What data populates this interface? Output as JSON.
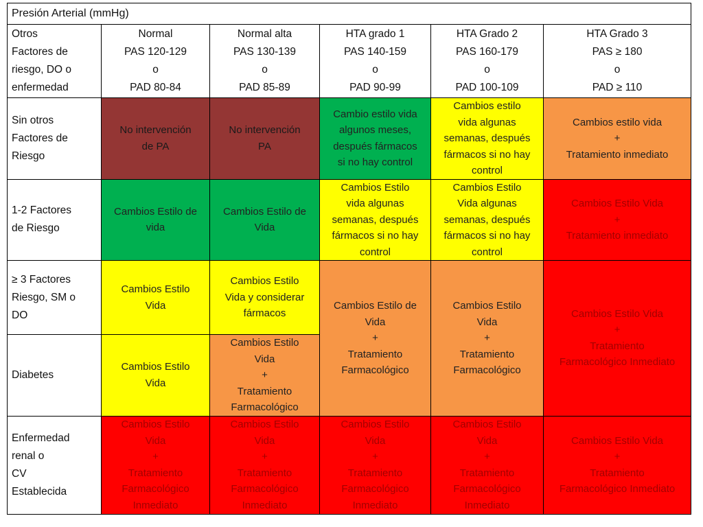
{
  "title": "Presión Arterial (mmHg)",
  "corner": [
    "Otros",
    "Factores de",
    "riesgo, DO o",
    "enfermedad"
  ],
  "columns": [
    [
      "Normal",
      "PAS 120-129",
      "o",
      "PAD 80-84"
    ],
    [
      "Normal alta",
      "PAS 130-139",
      "o",
      "PAD 85-89"
    ],
    [
      "HTA grado 1",
      "PAS 140-159",
      "o",
      "PAD 90-99"
    ],
    [
      "HTA Grado 2",
      "PAS 160-179",
      "o",
      "PAD 100-109"
    ],
    [
      "HTA Grado 3",
      "PAS ≥ 180",
      "o",
      "PAD ≥ 110"
    ]
  ],
  "rows": {
    "sin": {
      "label": [
        "Sin otros",
        "Factores de",
        "Riesgo"
      ],
      "c1": [
        "No intervención",
        "de PA"
      ],
      "c2": [
        "No intervención",
        "PA"
      ],
      "c3": [
        "Cambio estilo vida",
        "algunos meses,",
        "después fármacos",
        "si no hay control"
      ],
      "c4": [
        "Cambios estilo",
        "vida algunas",
        "semanas, después",
        "fármacos si no hay",
        "control"
      ],
      "c5": [
        "Cambios estilo vida",
        "+",
        "Tratamiento inmediato"
      ]
    },
    "f12": {
      "label": [
        "1-2 Factores",
        "de Riesgo"
      ],
      "c1": [
        "Cambios Estilo de",
        "vida"
      ],
      "c2": [
        "Cambios Estilo de",
        "Vida"
      ],
      "c3": [
        "Cambios Estilo",
        "vida algunas",
        "semanas, después",
        "fármacos si no hay",
        "control"
      ],
      "c4": [
        "Cambios Estilo",
        "Vida algunas",
        "semanas, después",
        "fármacos si no hay",
        "control"
      ],
      "c5": [
        "Cambios Estilo Vida",
        "+",
        "Tratamiento inmediato"
      ]
    },
    "f3": {
      "label": [
        "≥ 3 Factores",
        "Riesgo, SM o",
        "DO"
      ],
      "c1": [
        "Cambios Estilo",
        "Vida"
      ],
      "c2": [
        "Cambios Estilo",
        "Vida y considerar",
        "fármacos"
      ]
    },
    "diabetes": {
      "label": [
        "Diabetes"
      ],
      "c1": [
        "Cambios Estilo",
        "Vida"
      ],
      "c2": [
        "Cambios Estilo",
        "Vida",
        "+",
        "Tratamiento",
        "Farmacológico"
      ]
    },
    "merged": {
      "c3": [
        "Cambios Estilo de",
        "Vida",
        "+",
        "Tratamiento",
        "Farmacológico"
      ],
      "c4": [
        "Cambios Estilo",
        "Vida",
        "+",
        "Tratamiento",
        "Farmacológico"
      ],
      "c5": [
        "Cambios Estilo Vida",
        "+",
        "Tratamiento",
        "Farmacológico Inmediato"
      ]
    },
    "renal": {
      "label": [
        "Enfermedad",
        "renal o",
        "CV",
        "Establecida"
      ],
      "c1": [
        "Cambios Estilo",
        "Vida",
        "+",
        "Tratamiento",
        "Farmacológico",
        "Inmediato"
      ],
      "c2": [
        "Cambios Estilo",
        "Vida",
        "+",
        "Tratamiento",
        "Farmacológico",
        "Inmediato"
      ],
      "c3": [
        "Cambios Estilo",
        "Vida",
        "+",
        "Tratamiento",
        "Farmacológico",
        "Inmediato"
      ],
      "c4": [
        "Cambios Estilo",
        "Vida",
        "+",
        "Tratamiento",
        "Farmacológico",
        "Inmediato"
      ],
      "c5": [
        "Cambios Estilo Vida",
        "+",
        "Tratamiento",
        "Farmacológico Inmediato"
      ]
    }
  },
  "colors": {
    "brown": "#943634",
    "green": "#00b050",
    "yellow": "#ffff00",
    "orange": "#f79646",
    "red": "#ff0000"
  }
}
